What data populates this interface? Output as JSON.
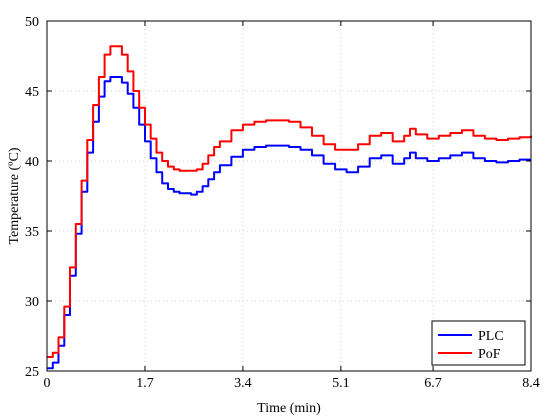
{
  "chart_data": {
    "type": "line",
    "title": "",
    "xlabel": "Time (min)",
    "ylabel": "Temperature (ºC)",
    "xlim": [
      0,
      8.4
    ],
    "ylim": [
      25,
      50
    ],
    "xticks": [
      0,
      1.7,
      3.4,
      5.1,
      6.7,
      8.4
    ],
    "xtick_labels": [
      "0",
      "1.7",
      "3.4",
      "5.1",
      "6.7",
      "8.4"
    ],
    "yticks": [
      25,
      30,
      35,
      40,
      45,
      50
    ],
    "ytick_labels": [
      "25",
      "30",
      "35",
      "40",
      "45",
      "50"
    ],
    "grid": true,
    "legend_position": "bottom-right",
    "series": [
      {
        "name": "PLC",
        "color": "#0000ff",
        "points": [
          [
            0,
            25.2
          ],
          [
            0.1,
            25.6
          ],
          [
            0.2,
            26.8
          ],
          [
            0.3,
            29.0
          ],
          [
            0.4,
            31.8
          ],
          [
            0.5,
            34.8
          ],
          [
            0.6,
            37.8
          ],
          [
            0.7,
            40.6
          ],
          [
            0.8,
            42.8
          ],
          [
            0.9,
            44.6
          ],
          [
            1.0,
            45.7
          ],
          [
            1.1,
            46.0
          ],
          [
            1.2,
            46.0
          ],
          [
            1.3,
            45.6
          ],
          [
            1.4,
            44.8
          ],
          [
            1.5,
            43.8
          ],
          [
            1.6,
            42.6
          ],
          [
            1.7,
            41.4
          ],
          [
            1.8,
            40.2
          ],
          [
            1.9,
            39.2
          ],
          [
            2.0,
            38.4
          ],
          [
            2.1,
            38.0
          ],
          [
            2.2,
            37.8
          ],
          [
            2.3,
            37.7
          ],
          [
            2.4,
            37.7
          ],
          [
            2.5,
            37.6
          ],
          [
            2.6,
            37.8
          ],
          [
            2.7,
            38.2
          ],
          [
            2.8,
            38.7
          ],
          [
            2.9,
            39.2
          ],
          [
            3.0,
            39.7
          ],
          [
            3.2,
            40.3
          ],
          [
            3.4,
            40.8
          ],
          [
            3.6,
            41.0
          ],
          [
            3.8,
            41.1
          ],
          [
            4.0,
            41.1
          ],
          [
            4.2,
            41.0
          ],
          [
            4.4,
            40.8
          ],
          [
            4.6,
            40.4
          ],
          [
            4.8,
            39.8
          ],
          [
            5.0,
            39.4
          ],
          [
            5.2,
            39.2
          ],
          [
            5.4,
            39.6
          ],
          [
            5.6,
            40.2
          ],
          [
            5.8,
            40.4
          ],
          [
            6.0,
            39.8
          ],
          [
            6.2,
            40.2
          ],
          [
            6.3,
            40.6
          ],
          [
            6.4,
            40.2
          ],
          [
            6.6,
            40.0
          ],
          [
            6.8,
            40.2
          ],
          [
            7.0,
            40.4
          ],
          [
            7.2,
            40.6
          ],
          [
            7.4,
            40.2
          ],
          [
            7.6,
            40.0
          ],
          [
            7.8,
            39.9
          ],
          [
            8.0,
            40.0
          ],
          [
            8.2,
            40.1
          ],
          [
            8.4,
            40.1
          ]
        ]
      },
      {
        "name": "PoF",
        "color": "#ff0000",
        "points": [
          [
            0,
            26.0
          ],
          [
            0.1,
            26.3
          ],
          [
            0.2,
            27.4
          ],
          [
            0.3,
            29.6
          ],
          [
            0.4,
            32.4
          ],
          [
            0.5,
            35.5
          ],
          [
            0.6,
            38.6
          ],
          [
            0.7,
            41.5
          ],
          [
            0.8,
            44.0
          ],
          [
            0.9,
            46.0
          ],
          [
            1.0,
            47.6
          ],
          [
            1.1,
            48.2
          ],
          [
            1.2,
            48.2
          ],
          [
            1.3,
            47.6
          ],
          [
            1.4,
            46.4
          ],
          [
            1.5,
            45.0
          ],
          [
            1.6,
            43.8
          ],
          [
            1.7,
            42.6
          ],
          [
            1.8,
            41.6
          ],
          [
            1.9,
            40.6
          ],
          [
            2.0,
            40.0
          ],
          [
            2.1,
            39.6
          ],
          [
            2.2,
            39.4
          ],
          [
            2.3,
            39.3
          ],
          [
            2.4,
            39.3
          ],
          [
            2.5,
            39.3
          ],
          [
            2.6,
            39.4
          ],
          [
            2.7,
            39.8
          ],
          [
            2.8,
            40.4
          ],
          [
            2.9,
            41.0
          ],
          [
            3.0,
            41.4
          ],
          [
            3.2,
            42.2
          ],
          [
            3.4,
            42.6
          ],
          [
            3.6,
            42.8
          ],
          [
            3.8,
            42.9
          ],
          [
            4.0,
            42.9
          ],
          [
            4.2,
            42.8
          ],
          [
            4.4,
            42.4
          ],
          [
            4.6,
            41.8
          ],
          [
            4.8,
            41.2
          ],
          [
            5.0,
            40.8
          ],
          [
            5.2,
            40.8
          ],
          [
            5.4,
            41.2
          ],
          [
            5.6,
            41.8
          ],
          [
            5.8,
            42.0
          ],
          [
            6.0,
            41.4
          ],
          [
            6.2,
            41.8
          ],
          [
            6.3,
            42.3
          ],
          [
            6.4,
            41.9
          ],
          [
            6.6,
            41.6
          ],
          [
            6.8,
            41.8
          ],
          [
            7.0,
            42.0
          ],
          [
            7.2,
            42.2
          ],
          [
            7.4,
            41.8
          ],
          [
            7.6,
            41.6
          ],
          [
            7.8,
            41.5
          ],
          [
            8.0,
            41.6
          ],
          [
            8.2,
            41.7
          ],
          [
            8.4,
            41.8
          ]
        ]
      }
    ]
  }
}
